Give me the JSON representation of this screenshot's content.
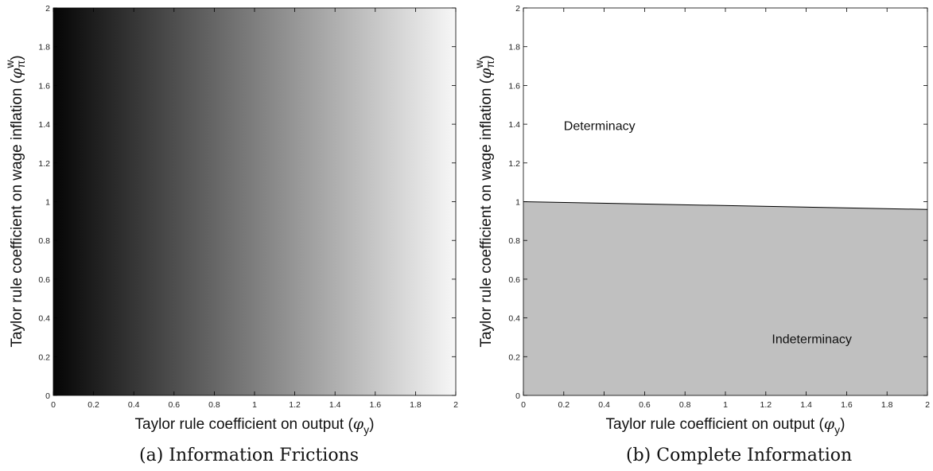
{
  "chart_data": [
    {
      "type": "heatmap",
      "caption": "(a) Information Frictions",
      "xlabel": "Taylor rule coefficient on output (",
      "xlabel_symbol": "φ",
      "xlabel_sub": "y",
      "xlabel_close": ")",
      "ylabel": "Taylor rule coefficient on wage inflation (",
      "ylabel_symbol": "φ",
      "ylabel_sup": "w",
      "ylabel_sub": "π",
      "ylabel_close": ")",
      "xlim": [
        0,
        2
      ],
      "ylim": [
        0,
        2
      ],
      "xticks": [
        0,
        0.2,
        0.4,
        0.6,
        0.8,
        1,
        1.2,
        1.4,
        1.6,
        1.8,
        2
      ],
      "yticks": [
        0,
        0.2,
        0.4,
        0.6,
        0.8,
        1,
        1.2,
        1.4,
        1.6,
        1.8,
        2
      ],
      "gradient": "dark at x=0 to light at x=2",
      "color_left": "#050505",
      "color_right": "#f7f7f7"
    },
    {
      "type": "area",
      "caption": "(b) Complete Information",
      "xlabel": "Taylor rule coefficient on output (",
      "xlabel_symbol": "φ",
      "xlabel_sub": "y",
      "xlabel_close": ")",
      "ylabel": "Taylor rule coefficient on wage inflation (",
      "ylabel_symbol": "φ",
      "ylabel_sup": "w",
      "ylabel_sub": "π",
      "ylabel_close": ")",
      "xlim": [
        0,
        2
      ],
      "ylim": [
        0,
        2
      ],
      "xticks": [
        0,
        0.2,
        0.4,
        0.6,
        0.8,
        1,
        1.2,
        1.4,
        1.6,
        1.8,
        2
      ],
      "yticks": [
        0,
        0.2,
        0.4,
        0.6,
        0.8,
        1,
        1.2,
        1.4,
        1.6,
        1.8,
        2
      ],
      "boundary": {
        "x": [
          0,
          2
        ],
        "y": [
          1.0,
          0.96
        ]
      },
      "regions": [
        {
          "label": "Determinacy",
          "x": 0.2,
          "y": 1.37,
          "fill": "#ffffff"
        },
        {
          "label": "Indeterminacy",
          "x": 1.23,
          "y": 0.27,
          "fill": "#c0c0c0"
        }
      ]
    }
  ]
}
